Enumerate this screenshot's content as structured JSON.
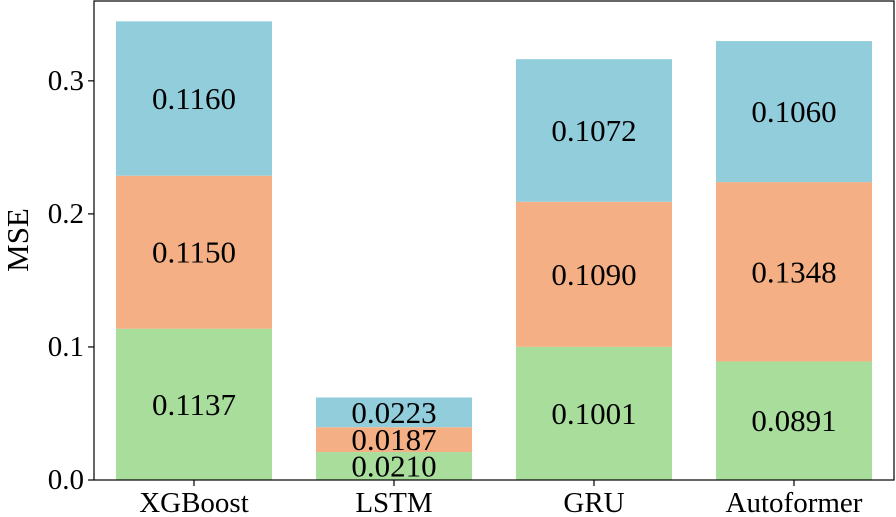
{
  "chart_data": {
    "type": "bar",
    "stacked": true,
    "categories": [
      "XGBoost",
      "LSTM",
      "GRU",
      "Autoformer"
    ],
    "series": [
      {
        "color": "#a8dd9c",
        "values": [
          0.1137,
          0.021,
          0.1001,
          0.0891
        ],
        "labels": [
          "0.1137",
          "0.0210",
          "0.1001",
          "0.0891"
        ]
      },
      {
        "color": "#f4b084",
        "values": [
          0.115,
          0.0187,
          0.109,
          0.1348
        ],
        "labels": [
          "0.1150",
          "0.0187",
          "0.1090",
          "0.1348"
        ]
      },
      {
        "color": "#92cddc",
        "values": [
          0.116,
          0.0223,
          0.1072,
          0.106
        ],
        "labels": [
          "0.1160",
          "0.0223",
          "0.1072",
          "0.1060"
        ]
      }
    ],
    "title": "",
    "xlabel": "",
    "ylabel": "MSE",
    "ylim": [
      0,
      0.36
    ],
    "yticks": [
      0.0,
      0.1,
      0.2,
      0.3
    ],
    "ytick_labels": [
      "0.0",
      "0.1",
      "0.2",
      "0.3"
    ],
    "grid": false,
    "legend": "none"
  }
}
